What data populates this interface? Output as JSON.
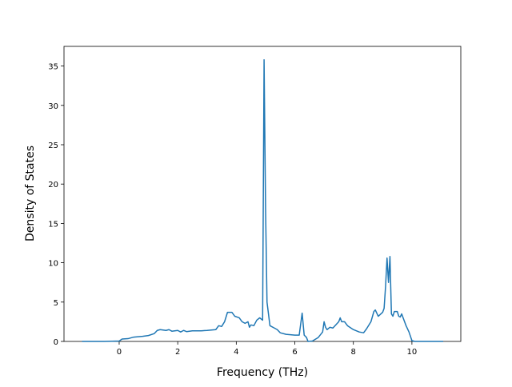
{
  "chart_data": {
    "type": "line",
    "x_label": "Frequency (THz)",
    "y_label": "Density of States",
    "x": [
      -1.27,
      -0.5,
      0,
      0.1,
      0.3,
      0.5,
      0.8,
      1.0,
      1.2,
      1.3,
      1.4,
      1.6,
      1.7,
      1.8,
      2.0,
      2.1,
      2.2,
      2.3,
      2.5,
      2.8,
      3.0,
      3.3,
      3.4,
      3.5,
      3.6,
      3.7,
      3.85,
      3.95,
      4.1,
      4.2,
      4.3,
      4.4,
      4.45,
      4.5,
      4.6,
      4.7,
      4.8,
      4.9,
      4.95,
      5.0,
      5.05,
      5.15,
      5.3,
      5.4,
      5.5,
      5.7,
      6.0,
      6.15,
      6.25,
      6.32,
      6.4,
      6.45,
      6.6,
      6.8,
      6.95,
      7.0,
      7.05,
      7.1,
      7.2,
      7.3,
      7.5,
      7.55,
      7.6,
      7.7,
      7.8,
      8.0,
      8.2,
      8.35,
      8.45,
      8.6,
      8.7,
      8.75,
      8.85,
      9.0,
      9.05,
      9.1,
      9.15,
      9.2,
      9.25,
      9.3,
      9.35,
      9.4,
      9.5,
      9.55,
      9.6,
      9.65,
      9.7,
      9.8,
      9.9,
      10.0,
      10.1,
      11.07
    ],
    "series": [
      {
        "name": "DOS",
        "color": "#1f77b4",
        "values": [
          0,
          0,
          0.05,
          0.3,
          0.35,
          0.55,
          0.65,
          0.75,
          1.0,
          1.4,
          1.5,
          1.4,
          1.5,
          1.3,
          1.4,
          1.2,
          1.4,
          1.25,
          1.35,
          1.35,
          1.4,
          1.5,
          2.0,
          1.9,
          2.5,
          3.7,
          3.7,
          3.2,
          3.0,
          2.5,
          2.3,
          2.5,
          1.8,
          2.1,
          2.0,
          2.7,
          3.0,
          2.7,
          35.8,
          17,
          5,
          2.0,
          1.7,
          1.5,
          1.1,
          0.9,
          0.8,
          0.8,
          3.6,
          0.8,
          0.5,
          0,
          0.05,
          0.5,
          1.2,
          2.5,
          1.8,
          1.5,
          1.8,
          1.7,
          2.5,
          3.0,
          2.5,
          2.5,
          2.0,
          1.5,
          1.2,
          1.1,
          1.6,
          2.5,
          3.8,
          4.0,
          3.2,
          3.7,
          4.2,
          7,
          10.6,
          7.5,
          10.8,
          3.5,
          3.2,
          3.8,
          3.8,
          3.2,
          3.1,
          3.5,
          3.0,
          2.0,
          1.2,
          0.1,
          0,
          0
        ]
      }
    ],
    "xlim": [
      -1.885,
      11.67
    ],
    "ylim": [
      0,
      37.5
    ],
    "xticks": [
      0,
      2,
      4,
      6,
      8,
      10
    ],
    "yticks": [
      0,
      5,
      10,
      15,
      20,
      25,
      30,
      35
    ]
  }
}
